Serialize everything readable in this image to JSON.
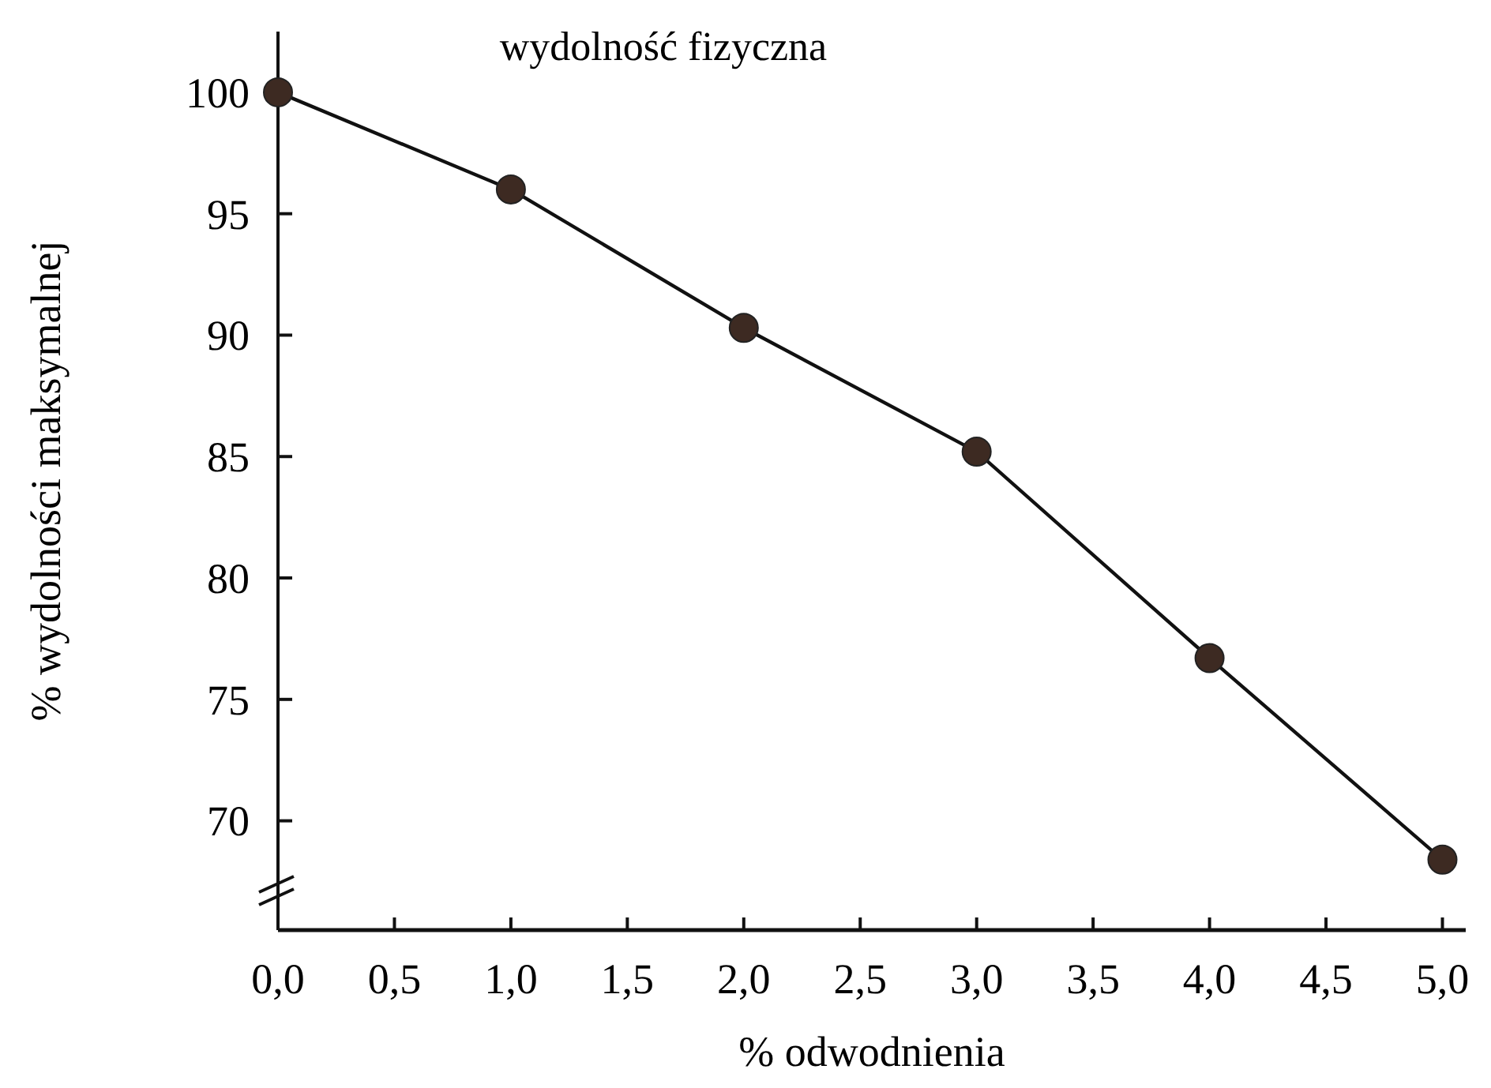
{
  "chart_data": {
    "type": "line",
    "title": "wydolność fizyczna",
    "xlabel": "% odwodnienia",
    "ylabel": "% wydolności maksymalnej",
    "x": [
      0,
      1,
      2,
      3,
      4,
      5
    ],
    "series": [
      {
        "color": "#3d2a22",
        "values": [
          100,
          96,
          90.3,
          85.2,
          76.7,
          68.4
        ]
      }
    ],
    "xlim": [
      0,
      5.1
    ],
    "xticks": [
      {
        "value": 0,
        "label": "0,0"
      },
      {
        "value": 0.5,
        "label": "0,5"
      },
      {
        "value": 1,
        "label": "1,0"
      },
      {
        "value": 1.5,
        "label": "1,5"
      },
      {
        "value": 2,
        "label": "2,0"
      },
      {
        "value": 2.5,
        "label": "2,5"
      },
      {
        "value": 3,
        "label": "3,0"
      },
      {
        "value": 3.5,
        "label": "3,5"
      },
      {
        "value": 4,
        "label": "4,0"
      },
      {
        "value": 4.5,
        "label": "4,5"
      },
      {
        "value": 5,
        "label": "5,0"
      }
    ],
    "ylim": [
      65.5,
      102.5
    ],
    "yticks": [
      70,
      75,
      80,
      85,
      90,
      95,
      100
    ],
    "marker": "circle",
    "line_style": "solid"
  }
}
